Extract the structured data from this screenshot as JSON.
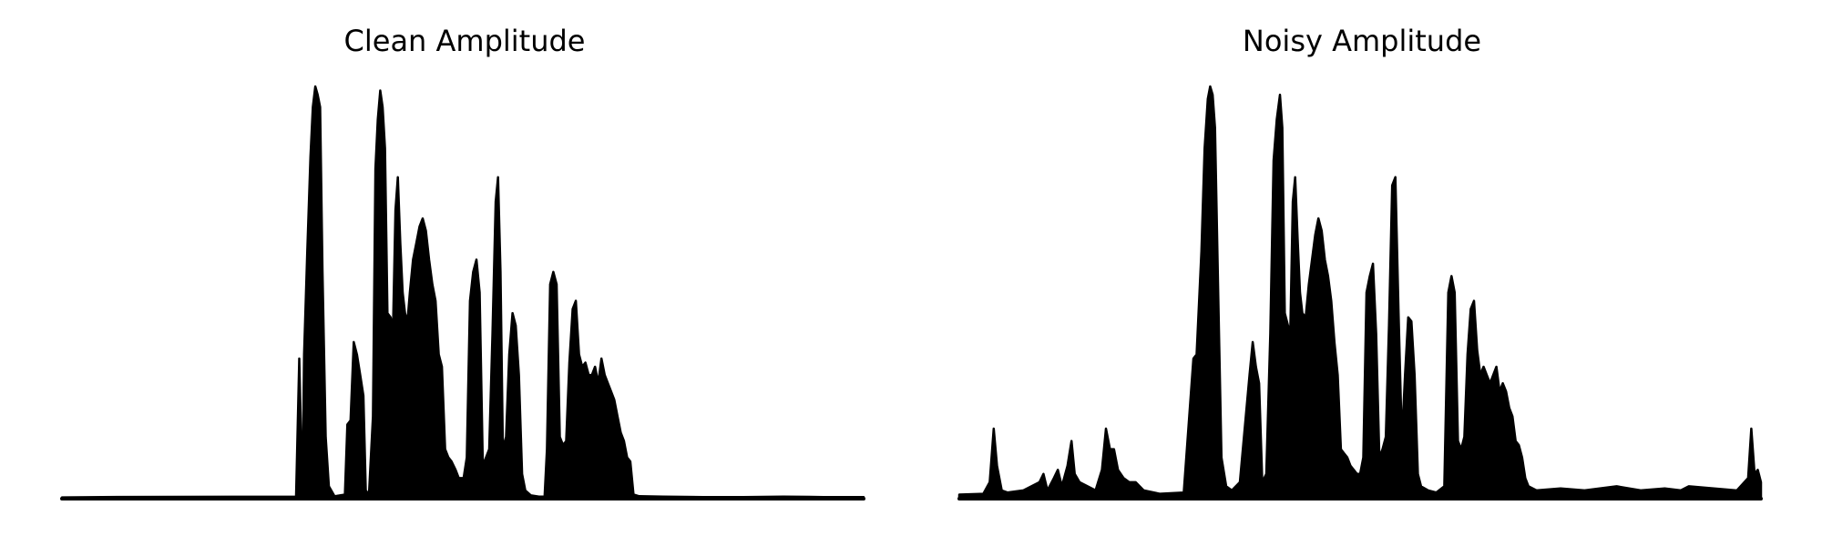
{
  "colors": {
    "waveform": "#000000",
    "background": "#ffffff"
  },
  "chart_data": [
    {
      "type": "area",
      "title": "Clean Amplitude",
      "xlabel": "",
      "ylabel": "",
      "axes_visible": false,
      "grid": false,
      "xlim": [
        0,
        100
      ],
      "ylim": [
        0,
        1
      ],
      "envelope": [
        [
          0,
          0.003
        ],
        [
          5,
          0.004
        ],
        [
          30,
          0.003
        ],
        [
          29.2,
          0.005
        ],
        [
          29.6,
          0.34
        ],
        [
          30.2,
          0.35
        ],
        [
          30.6,
          0.6
        ],
        [
          31.0,
          0.83
        ],
        [
          31.3,
          0.95
        ],
        [
          31.6,
          1.0
        ],
        [
          31.9,
          0.98
        ],
        [
          32.2,
          0.95
        ],
        [
          32.5,
          0.55
        ],
        [
          32.9,
          0.15
        ],
        [
          33.3,
          0.03
        ],
        [
          34,
          0.006
        ],
        [
          35.3,
          0.01
        ],
        [
          35.6,
          0.18
        ],
        [
          36,
          0.19
        ],
        [
          36.4,
          0.38
        ],
        [
          36.8,
          0.35
        ],
        [
          37.2,
          0.3
        ],
        [
          37.6,
          0.25
        ],
        [
          37.9,
          0.02
        ],
        [
          38.3,
          0.01
        ],
        [
          38.8,
          0.2
        ],
        [
          39.1,
          0.8
        ],
        [
          39.4,
          0.92
        ],
        [
          39.7,
          0.99
        ],
        [
          40.0,
          0.95
        ],
        [
          40.3,
          0.85
        ],
        [
          40.6,
          0.45
        ],
        [
          41.0,
          0.44
        ],
        [
          41.3,
          0.41
        ],
        [
          41.6,
          0.7
        ],
        [
          41.9,
          0.78
        ],
        [
          42.2,
          0.62
        ],
        [
          42.5,
          0.5
        ],
        [
          42.8,
          0.45
        ],
        [
          43.1,
          0.43
        ],
        [
          43.4,
          0.5
        ],
        [
          43.8,
          0.58
        ],
        [
          44.2,
          0.62
        ],
        [
          44.6,
          0.66
        ],
        [
          45.0,
          0.68
        ],
        [
          45.4,
          0.65
        ],
        [
          45.8,
          0.58
        ],
        [
          46.2,
          0.52
        ],
        [
          46.6,
          0.48
        ],
        [
          47.0,
          0.35
        ],
        [
          47.4,
          0.32
        ],
        [
          47.8,
          0.12
        ],
        [
          48.2,
          0.1
        ],
        [
          48.6,
          0.09
        ],
        [
          49.1,
          0.07
        ],
        [
          49.5,
          0.05
        ],
        [
          49.8,
          0.05
        ],
        [
          50.1,
          0.05
        ],
        [
          50.5,
          0.1
        ],
        [
          50.9,
          0.48
        ],
        [
          51.3,
          0.55
        ],
        [
          51.7,
          0.58
        ],
        [
          52.1,
          0.5
        ],
        [
          52.5,
          0.08
        ],
        [
          52.9,
          0.1
        ],
        [
          53.3,
          0.12
        ],
        [
          53.7,
          0.4
        ],
        [
          54.1,
          0.72
        ],
        [
          54.4,
          0.78
        ],
        [
          54.7,
          0.55
        ],
        [
          55.0,
          0.12
        ],
        [
          55.4,
          0.15
        ],
        [
          55.8,
          0.35
        ],
        [
          56.2,
          0.45
        ],
        [
          56.6,
          0.42
        ],
        [
          57.0,
          0.3
        ],
        [
          57.4,
          0.06
        ],
        [
          57.8,
          0.02
        ],
        [
          58.5,
          0.008
        ],
        [
          59.5,
          0.005
        ],
        [
          60.2,
          0.005
        ],
        [
          60.5,
          0.12
        ],
        [
          60.9,
          0.52
        ],
        [
          61.3,
          0.55
        ],
        [
          61.7,
          0.52
        ],
        [
          62.1,
          0.15
        ],
        [
          62.5,
          0.13
        ],
        [
          62.9,
          0.14
        ],
        [
          63.3,
          0.33
        ],
        [
          63.7,
          0.46
        ],
        [
          64.1,
          0.48
        ],
        [
          64.5,
          0.35
        ],
        [
          64.9,
          0.32
        ],
        [
          65.3,
          0.33
        ],
        [
          65.7,
          0.3
        ],
        [
          66.1,
          0.3
        ],
        [
          66.5,
          0.32
        ],
        [
          66.9,
          0.28
        ],
        [
          67.3,
          0.34
        ],
        [
          67.7,
          0.3
        ],
        [
          68.1,
          0.28
        ],
        [
          68.5,
          0.26
        ],
        [
          68.9,
          0.24
        ],
        [
          69.3,
          0.2
        ],
        [
          69.7,
          0.16
        ],
        [
          70.1,
          0.14
        ],
        [
          70.5,
          0.1
        ],
        [
          70.9,
          0.09
        ],
        [
          71.3,
          0.01
        ],
        [
          72,
          0.006
        ],
        [
          75,
          0.005
        ],
        [
          80,
          0.004
        ],
        [
          85,
          0.004
        ],
        [
          90,
          0.005
        ],
        [
          95,
          0.004
        ],
        [
          100,
          0.004
        ]
      ]
    },
    {
      "type": "area",
      "title": "Noisy Amplitude",
      "xlabel": "",
      "ylabel": "",
      "axes_visible": false,
      "grid": false,
      "xlim": [
        0,
        100
      ],
      "ylim": [
        0,
        1
      ],
      "envelope": [
        [
          0,
          0.01
        ],
        [
          3,
          0.012
        ],
        [
          3.8,
          0.04
        ],
        [
          4.3,
          0.17
        ],
        [
          4.7,
          0.08
        ],
        [
          5.3,
          0.02
        ],
        [
          6,
          0.015
        ],
        [
          8,
          0.02
        ],
        [
          10,
          0.04
        ],
        [
          10.5,
          0.06
        ],
        [
          11,
          0.02
        ],
        [
          11.8,
          0.05
        ],
        [
          12.3,
          0.07
        ],
        [
          12.8,
          0.03
        ],
        [
          13.5,
          0.08
        ],
        [
          14,
          0.14
        ],
        [
          14.4,
          0.06
        ],
        [
          15,
          0.04
        ],
        [
          17,
          0.02
        ],
        [
          17.8,
          0.07
        ],
        [
          18.3,
          0.17
        ],
        [
          18.8,
          0.12
        ],
        [
          19.3,
          0.12
        ],
        [
          19.8,
          0.07
        ],
        [
          20.5,
          0.05
        ],
        [
          21.2,
          0.04
        ],
        [
          22,
          0.04
        ],
        [
          23,
          0.02
        ],
        [
          25,
          0.012
        ],
        [
          28,
          0.015
        ],
        [
          29.2,
          0.34
        ],
        [
          29.6,
          0.35
        ],
        [
          30.2,
          0.6
        ],
        [
          30.6,
          0.85
        ],
        [
          31.0,
          0.97
        ],
        [
          31.3,
          1.0
        ],
        [
          31.6,
          0.98
        ],
        [
          31.9,
          0.9
        ],
        [
          32.3,
          0.5
        ],
        [
          32.7,
          0.1
        ],
        [
          33.3,
          0.03
        ],
        [
          34,
          0.02
        ],
        [
          35,
          0.04
        ],
        [
          36.2,
          0.3
        ],
        [
          36.6,
          0.38
        ],
        [
          37,
          0.32
        ],
        [
          37.4,
          0.28
        ],
        [
          37.8,
          0.04
        ],
        [
          38.3,
          0.06
        ],
        [
          38.8,
          0.4
        ],
        [
          39.2,
          0.82
        ],
        [
          39.6,
          0.92
        ],
        [
          40.0,
          0.98
        ],
        [
          40.3,
          0.9
        ],
        [
          40.6,
          0.45
        ],
        [
          41.0,
          0.42
        ],
        [
          41.3,
          0.41
        ],
        [
          41.6,
          0.72
        ],
        [
          41.9,
          0.78
        ],
        [
          42.2,
          0.63
        ],
        [
          42.5,
          0.5
        ],
        [
          42.8,
          0.45
        ],
        [
          43.2,
          0.44
        ],
        [
          43.6,
          0.52
        ],
        [
          44.0,
          0.58
        ],
        [
          44.4,
          0.64
        ],
        [
          44.8,
          0.68
        ],
        [
          45.2,
          0.65
        ],
        [
          45.6,
          0.58
        ],
        [
          46.0,
          0.54
        ],
        [
          46.4,
          0.48
        ],
        [
          46.8,
          0.38
        ],
        [
          47.2,
          0.3
        ],
        [
          47.6,
          0.12
        ],
        [
          48.0,
          0.11
        ],
        [
          48.4,
          0.1
        ],
        [
          48.8,
          0.08
        ],
        [
          49.2,
          0.07
        ],
        [
          49.6,
          0.06
        ],
        [
          50.0,
          0.06
        ],
        [
          50.4,
          0.1
        ],
        [
          50.8,
          0.5
        ],
        [
          51.2,
          0.54
        ],
        [
          51.6,
          0.57
        ],
        [
          52.0,
          0.4
        ],
        [
          52.4,
          0.1
        ],
        [
          52.8,
          0.12
        ],
        [
          53.2,
          0.15
        ],
        [
          53.6,
          0.42
        ],
        [
          54.0,
          0.76
        ],
        [
          54.4,
          0.78
        ],
        [
          54.8,
          0.45
        ],
        [
          55.2,
          0.14
        ],
        [
          55.6,
          0.3
        ],
        [
          56.0,
          0.44
        ],
        [
          56.4,
          0.43
        ],
        [
          56.8,
          0.3
        ],
        [
          57.2,
          0.06
        ],
        [
          57.6,
          0.03
        ],
        [
          58.5,
          0.02
        ],
        [
          59.5,
          0.015
        ],
        [
          60.5,
          0.03
        ],
        [
          61,
          0.5
        ],
        [
          61.4,
          0.54
        ],
        [
          61.8,
          0.5
        ],
        [
          62.2,
          0.14
        ],
        [
          62.6,
          0.12
        ],
        [
          63,
          0.15
        ],
        [
          63.4,
          0.35
        ],
        [
          63.8,
          0.46
        ],
        [
          64.2,
          0.48
        ],
        [
          64.6,
          0.36
        ],
        [
          65,
          0.3
        ],
        [
          65.4,
          0.32
        ],
        [
          65.8,
          0.3
        ],
        [
          66.2,
          0.28
        ],
        [
          66.6,
          0.3
        ],
        [
          67,
          0.32
        ],
        [
          67.4,
          0.26
        ],
        [
          67.8,
          0.28
        ],
        [
          68.2,
          0.26
        ],
        [
          68.6,
          0.22
        ],
        [
          69,
          0.2
        ],
        [
          69.4,
          0.14
        ],
        [
          69.8,
          0.13
        ],
        [
          70.2,
          0.1
        ],
        [
          70.6,
          0.05
        ],
        [
          71,
          0.03
        ],
        [
          72,
          0.02
        ],
        [
          75,
          0.025
        ],
        [
          78,
          0.02
        ],
        [
          82,
          0.03
        ],
        [
          85,
          0.02
        ],
        [
          88,
          0.025
        ],
        [
          90,
          0.02
        ],
        [
          91,
          0.03
        ],
        [
          97,
          0.02
        ],
        [
          98.4,
          0.05
        ],
        [
          98.8,
          0.17
        ],
        [
          99.2,
          0.06
        ],
        [
          99.6,
          0.07
        ],
        [
          100,
          0.04
        ]
      ]
    }
  ]
}
